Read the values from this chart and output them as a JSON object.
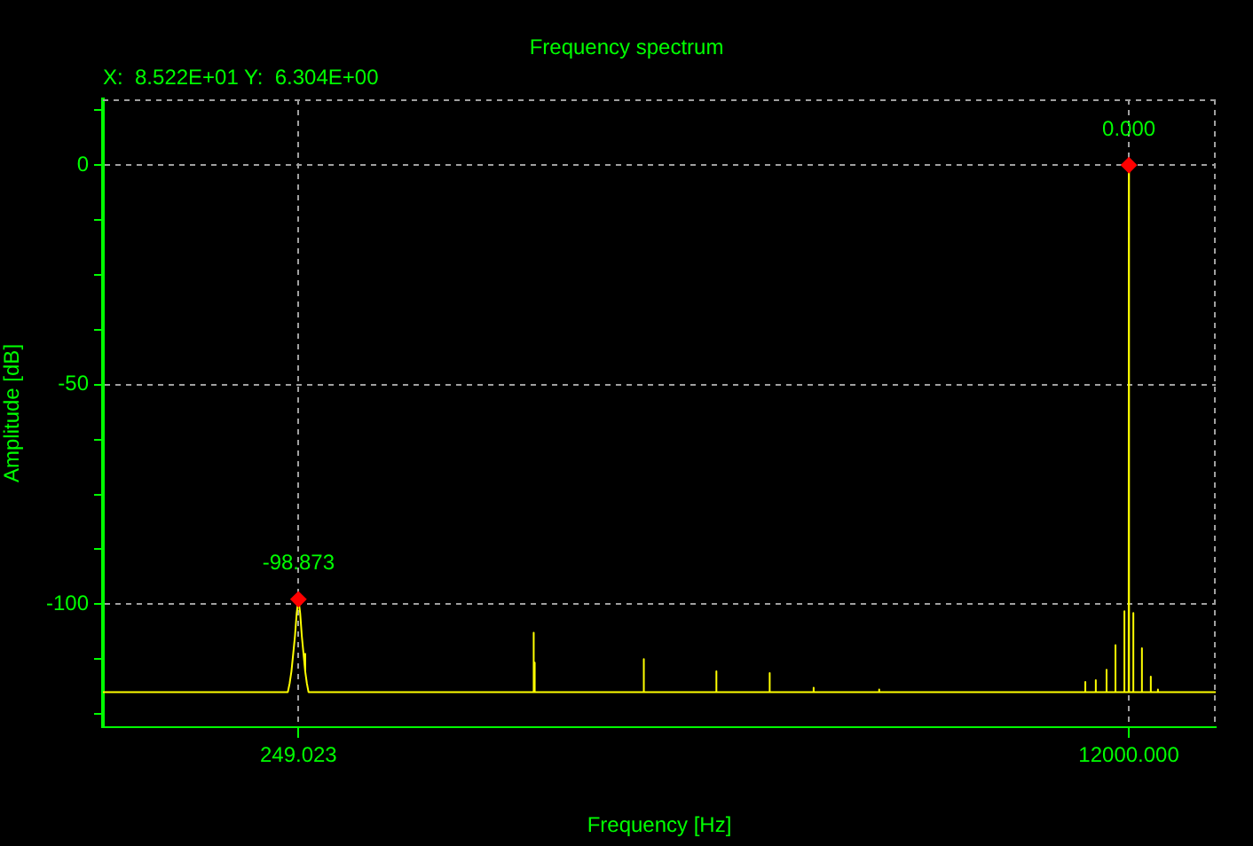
{
  "chart_data": {
    "type": "line",
    "title": "Frequency spectrum",
    "xlabel": "Frequency [Hz]",
    "ylabel": "Amplitude [dB]",
    "annotations": [
      "X:  8.522E+01 Y:  6.304E+00",
      {
        "text": "-98.873",
        "x": 249.023,
        "y": -98.873
      },
      {
        "text": "0.000",
        "x": 12000,
        "y": 0
      }
    ],
    "series": [
      {
        "color": "#ffff00",
        "x": [
          100,
          237,
          239,
          241,
          243,
          245,
          247,
          249.023,
          251,
          253,
          255,
          257,
          259,
          261,
          745,
          746,
          747,
          749,
          750,
          1245,
          1247,
          1249,
          1748,
          1750,
          1752,
          2241,
          2244,
          2247,
          2752,
          2755,
          2758,
          3737,
          3741,
          3745,
          9780,
          9790,
          9800,
          10270,
          10280,
          10290,
          10800,
          10810,
          10820,
          11260,
          11270,
          11280,
          11740,
          11750,
          11760,
          11990,
          12000,
          12010,
          12240,
          12250,
          12260,
          12740,
          12750,
          12760,
          13280,
          13290,
          13300,
          13730,
          13740,
          13750,
          18000
        ],
        "values": [
          -120,
          -120,
          -118,
          -115.3,
          -111.3,
          -107.3,
          -102,
          -98.873,
          -102,
          -107.3,
          -111.3,
          -115.3,
          -118,
          -120,
          -120,
          -106.5,
          -120,
          -113.3,
          -120,
          -120,
          -112.5,
          -120,
          -120,
          -115.3,
          -120,
          -120,
          -115.7,
          -120,
          -120,
          -119,
          -120,
          -120,
          -119.4,
          -120,
          -120,
          -117.7,
          -120,
          -120,
          -117.3,
          -120,
          -120,
          -114.9,
          -120,
          -120,
          -109.3,
          -120,
          -120,
          -101.6,
          -120,
          -120,
          0,
          -120,
          -120,
          -102,
          -120,
          -120,
          -110,
          -120,
          -120,
          -116.5,
          -120,
          -120,
          -119.4,
          -120,
          -120
        ]
      },
      {
        "type": "scatter",
        "color": "#ff0000",
        "marker": "diamond",
        "x": [
          249.023,
          12000
        ],
        "values": [
          -98.873,
          0
        ]
      }
    ],
    "log": "x",
    "xlim": [
      100,
      18000
    ],
    "xticks": [
      {
        "value": 249.023,
        "label": "249.023"
      },
      {
        "value": 12000,
        "label": "12000.000"
      }
    ],
    "ylim": [
      -128,
      15
    ],
    "yticks": [
      {
        "value": 12.5,
        "label": null
      },
      0,
      {
        "value": -12.5,
        "label": null
      },
      {
        "value": -25,
        "label": null
      },
      {
        "value": -37.5,
        "label": null
      },
      -50,
      {
        "value": -62.5,
        "label": null
      },
      {
        "value": -75,
        "label": null
      },
      {
        "value": -87.5,
        "label": null
      },
      -100,
      {
        "value": -112.5,
        "label": null
      },
      {
        "value": -125,
        "label": null
      }
    ],
    "grid": true,
    "legend": false
  }
}
